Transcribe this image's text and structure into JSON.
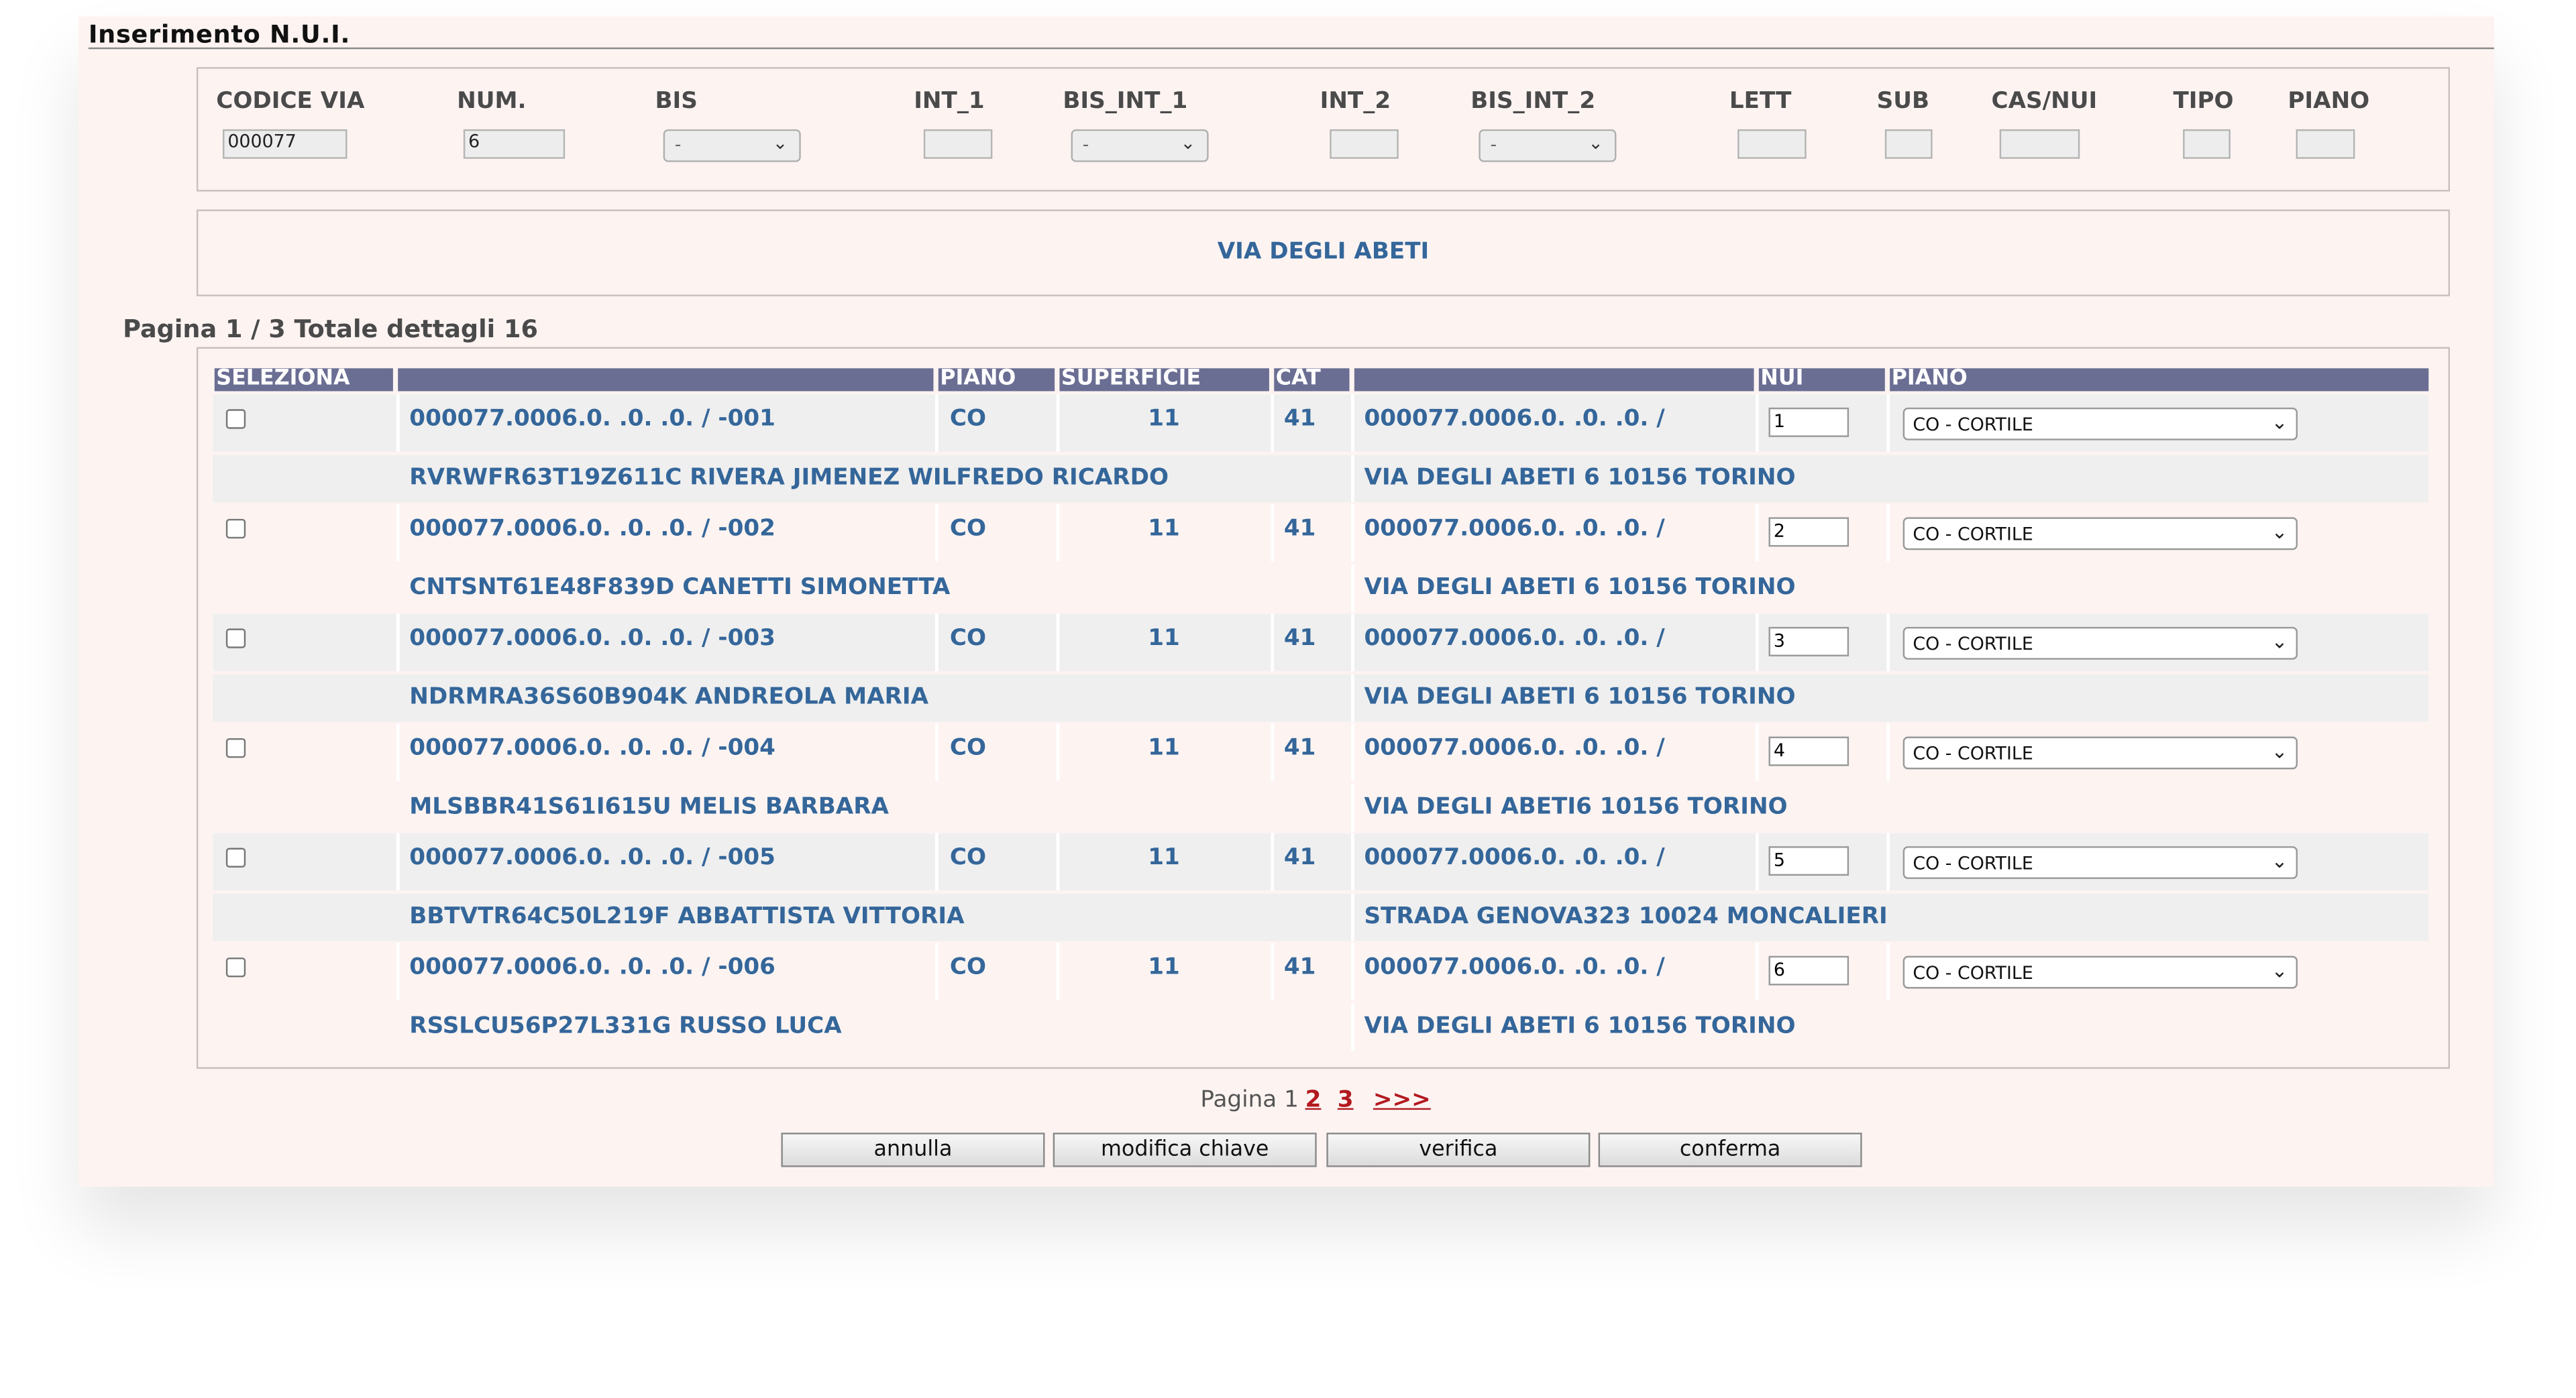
{
  "page_title": "Inserimento N.U.I.",
  "key_fields": {
    "codice_via": {
      "label": "CODICE VIA",
      "value": "000077"
    },
    "num": {
      "label": "NUM.",
      "value": "6"
    },
    "bis": {
      "label": "BIS",
      "value": "-"
    },
    "int_1": {
      "label": "INT_1",
      "value": ""
    },
    "bis_int_1": {
      "label": "BIS_INT_1",
      "value": "-"
    },
    "int_2": {
      "label": "INT_2",
      "value": ""
    },
    "bis_int_2": {
      "label": "BIS_INT_2",
      "value": "-"
    },
    "lett": {
      "label": "LETT",
      "value": ""
    },
    "sub": {
      "label": "SUB",
      "value": ""
    },
    "cas_nui": {
      "label": "CAS/NUI",
      "value": ""
    },
    "tipo": {
      "label": "TIPO",
      "value": ""
    },
    "piano": {
      "label": "PIANO",
      "value": ""
    }
  },
  "street_name": "VIA DEGLI ABETI",
  "summary": "Pagina 1 / 3 Totale dettagli 16",
  "table": {
    "headers": [
      "SELEZIONA",
      "",
      "PIANO",
      "SUPERFICIE",
      "CAT",
      "",
      "NUI",
      "PIANO"
    ],
    "rows": [
      {
        "code": "000077.0006.0. .0. .0. / -001",
        "piano": "CO",
        "superficie": "11",
        "cat": "41",
        "key": "000077.0006.0. .0. .0. /",
        "nui": "1",
        "piano_select": "CO - CORTILE",
        "owner": "RVRWFR63T19Z611C RIVERA JIMENEZ WILFREDO RICARDO",
        "address": "VIA DEGLI ABETI 6 10156 TORINO",
        "checked": false
      },
      {
        "code": "000077.0006.0. .0. .0. / -002",
        "piano": "CO",
        "superficie": "11",
        "cat": "41",
        "key": "000077.0006.0. .0. .0. /",
        "nui": "2",
        "piano_select": "CO - CORTILE",
        "owner": "CNTSNT61E48F839D CANETTI SIMONETTA",
        "address": "VIA DEGLI ABETI 6 10156 TORINO",
        "checked": false
      },
      {
        "code": "000077.0006.0. .0. .0. / -003",
        "piano": "CO",
        "superficie": "11",
        "cat": "41",
        "key": "000077.0006.0. .0. .0. /",
        "nui": "3",
        "piano_select": "CO - CORTILE",
        "owner": "NDRMRA36S60B904K ANDREOLA MARIA",
        "address": "VIA DEGLI ABETI 6 10156 TORINO",
        "checked": false
      },
      {
        "code": "000077.0006.0. .0. .0. / -004",
        "piano": "CO",
        "superficie": "11",
        "cat": "41",
        "key": "000077.0006.0. .0. .0. /",
        "nui": "4",
        "piano_select": "CO - CORTILE",
        "owner": "MLSBBR41S61I615U MELIS BARBARA",
        "address": "VIA DEGLI ABETI6 10156 TORINO",
        "checked": false
      },
      {
        "code": "000077.0006.0. .0. .0. / -005",
        "piano": "CO",
        "superficie": "11",
        "cat": "41",
        "key": "000077.0006.0. .0. .0. /",
        "nui": "5",
        "piano_select": "CO - CORTILE",
        "owner": "BBTVTR64C50L219F ABBATTISTA VITTORIA",
        "address": "STRADA GENOVA323 10024 MONCALIERI",
        "checked": false
      },
      {
        "code": "000077.0006.0. .0. .0. / -006",
        "piano": "CO",
        "superficie": "11",
        "cat": "41",
        "key": "000077.0006.0. .0. .0. /",
        "nui": "6",
        "piano_select": "CO - CORTILE",
        "owner": "RSSLCU56P27L331G RUSSO LUCA",
        "address": "VIA DEGLI ABETI 6 10156 TORINO",
        "checked": false
      }
    ]
  },
  "pager": {
    "label": "Pagina 1",
    "pages": [
      "2",
      "3"
    ],
    "next": ">>>"
  },
  "buttons": {
    "annulla": "annulla",
    "modifica_chiave": "modifica chiave",
    "verifica": "verifica",
    "conferma": "conferma"
  },
  "colors": {
    "header_bg": "#6b6e93",
    "link_blue": "#34669a",
    "page_bg": "#fdf4f2",
    "pager_red": "#b2191f"
  },
  "icons": {
    "select_arrow": "chevron-down-icon"
  }
}
